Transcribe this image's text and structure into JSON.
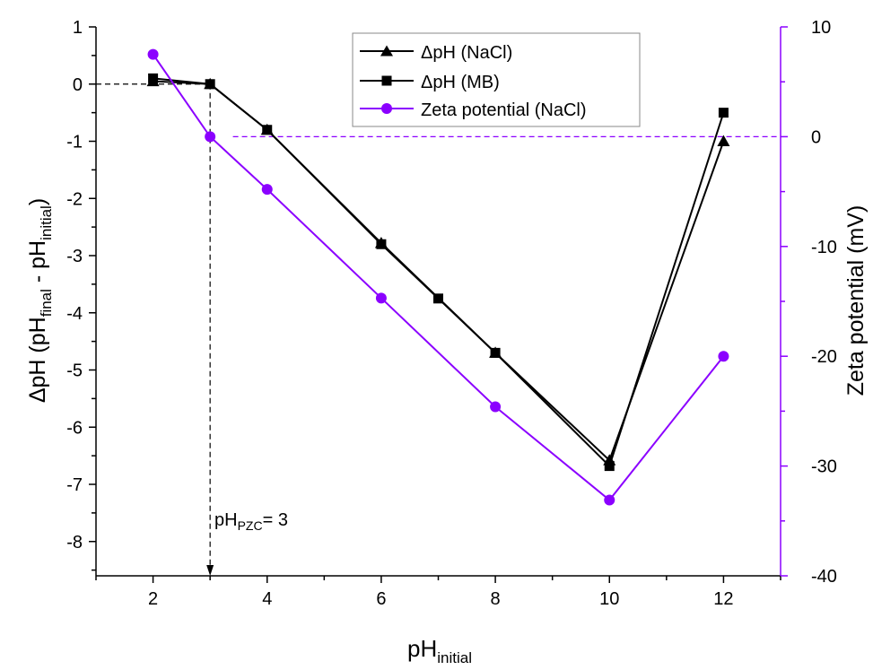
{
  "colors": {
    "axis": "#000000",
    "nacl_series": "#000000",
    "mb_series": "#000000",
    "zeta_series": "#8b00ff",
    "zeta_axis": "#8b00ff",
    "guide_black": "#000000",
    "guide_purple": "#8b00ff"
  },
  "chart_data": {
    "type": "line",
    "title": "",
    "xlabel": {
      "main": "pH",
      "sub": "initial"
    },
    "ylabel_left": {
      "prefix": "ΔpH (pH",
      "sub1": "final",
      "mid": " - pH",
      "sub2": "initial",
      "suffix": ")"
    },
    "ylabel_right": "Zeta potential (mV)",
    "xlim": [
      1,
      13
    ],
    "ylim_left": [
      -8.6,
      1
    ],
    "ylim_right": [
      -40,
      10
    ],
    "x_ticks": [
      2,
      4,
      6,
      8,
      10,
      12
    ],
    "x_tick_labels": [
      "2",
      "4",
      "6",
      "8",
      "10",
      "12"
    ],
    "y_left_ticks": [
      1,
      0,
      -1,
      -2,
      -3,
      -4,
      -5,
      -6,
      -7,
      -8
    ],
    "y_left_tick_labels": [
      "1",
      "0",
      "-1",
      "-2",
      "-3",
      "-4",
      "-5",
      "-6",
      "-7",
      "-8"
    ],
    "y_right_ticks": [
      10,
      0,
      -10,
      -20,
      -30,
      -40
    ],
    "y_right_tick_labels": [
      "10",
      "0",
      "-10",
      "-20",
      "-30",
      "-40"
    ],
    "legend_position": "top-center",
    "grid": false,
    "series": [
      {
        "name": "ΔpH (NaCl)",
        "axis": "left",
        "marker": "triangle",
        "x": [
          2,
          3,
          4,
          6,
          8,
          10,
          12
        ],
        "y": [
          0.05,
          0.0,
          -0.8,
          -2.78,
          -4.7,
          -6.58,
          -1.0
        ]
      },
      {
        "name": "ΔpH (MB)",
        "axis": "left",
        "marker": "square",
        "x": [
          2,
          3,
          4,
          6,
          7,
          8,
          10,
          12
        ],
        "y": [
          0.1,
          0.0,
          -0.8,
          -2.8,
          -3.75,
          -4.7,
          -6.68,
          -0.5
        ]
      },
      {
        "name": "Zeta potential (NaCl)",
        "axis": "right",
        "marker": "circle",
        "x": [
          2,
          3,
          4,
          6,
          8,
          10,
          12
        ],
        "y": [
          7.5,
          0.0,
          -4.8,
          -14.7,
          -24.6,
          -33.1,
          -20.0
        ]
      }
    ],
    "annotation": {
      "main": "pH",
      "sub": "PZC",
      "suffix": "= 3",
      "x": 3
    }
  }
}
